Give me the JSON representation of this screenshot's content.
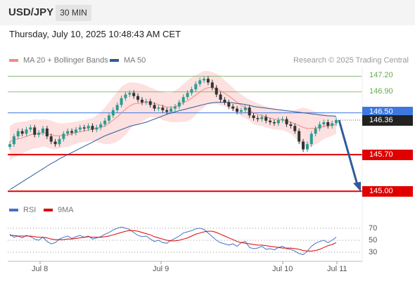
{
  "header": {
    "symbol": "USD/JPY",
    "timeframe_label": "30 MIN"
  },
  "datetime": "Thursday, July 10, 2025 10:48:43 AM CET",
  "legend": {
    "items": [
      {
        "label": "MA 20 + Bollinger Bands",
        "color": "#f28b82"
      },
      {
        "label": "MA 50",
        "color": "#2e5b9a"
      }
    ],
    "credit": "Research © 2025 Trading Central"
  },
  "price_levels": [
    {
      "label": "147.20",
      "value": 147.2,
      "kind": "target",
      "color": "#6aa84f"
    },
    {
      "label": "146.90",
      "value": 146.9,
      "kind": "target",
      "color": "#6aa84f"
    },
    {
      "label": "146.50",
      "value": 146.5,
      "kind": "pivot",
      "color": "#3d78e0"
    },
    {
      "label": "146.36",
      "value": 146.36,
      "kind": "last",
      "color": "#222222"
    },
    {
      "label": "145.70",
      "value": 145.7,
      "kind": "support",
      "color": "#e00000"
    },
    {
      "label": "145.00",
      "value": 145.0,
      "kind": "support",
      "color": "#e00000"
    }
  ],
  "rsi_panel": {
    "legend": [
      {
        "label": "RSI",
        "color": "#4472c4"
      },
      {
        "label": "9MA",
        "color": "#e00000"
      }
    ],
    "ticks": [
      "70",
      "50",
      "30"
    ]
  },
  "x_axis": {
    "labels": [
      "Jul 8",
      "Jul 9",
      "Jul 10",
      "Jul 11"
    ]
  },
  "chart_data": {
    "type": "candlestick",
    "price_axis": {
      "min": 144.95,
      "max": 147.3
    },
    "rsi_axis": {
      "min": 15,
      "max": 85
    },
    "candles_close": [
      145.9,
      146.05,
      146.15,
      146.1,
      146.18,
      146.22,
      146.08,
      146.12,
      146.2,
      146.05,
      145.95,
      145.9,
      146.0,
      146.1,
      146.15,
      146.12,
      146.18,
      146.22,
      146.2,
      146.25,
      146.18,
      146.22,
      146.28,
      146.35,
      146.45,
      146.55,
      146.65,
      146.78,
      146.85,
      146.88,
      146.82,
      146.75,
      146.7,
      146.72,
      146.65,
      146.58,
      146.6,
      146.55,
      146.52,
      146.58,
      146.62,
      146.7,
      146.8,
      146.88,
      146.95,
      147.05,
      147.12,
      147.15,
      147.08,
      146.98,
      146.85,
      146.75,
      146.7,
      146.62,
      146.58,
      146.52,
      146.55,
      146.6,
      146.45,
      146.4,
      146.38,
      146.42,
      146.35,
      146.32,
      146.3,
      146.36,
      146.38,
      146.28,
      146.25,
      146.15,
      145.95,
      145.8,
      145.9,
      146.1,
      146.2,
      146.28,
      146.32,
      146.25,
      146.3,
      146.36
    ],
    "ma20": [
      145.95,
      145.98,
      146.0,
      146.02,
      146.05,
      146.08,
      146.1,
      146.1,
      146.12,
      146.1,
      146.08,
      146.06,
      146.06,
      146.07,
      146.08,
      146.1,
      146.12,
      146.14,
      146.15,
      146.17,
      146.18,
      146.2,
      146.22,
      146.25,
      146.3,
      146.36,
      146.42,
      146.5,
      146.57,
      146.63,
      146.67,
      146.68,
      146.69,
      146.7,
      146.7,
      146.68,
      146.66,
      146.63,
      146.61,
      146.6,
      146.62,
      146.65,
      146.69,
      146.73,
      146.78,
      146.84,
      146.9,
      146.95,
      146.98,
      146.98,
      146.96,
      146.92,
      146.87,
      146.82,
      146.76,
      146.7,
      146.64,
      146.6,
      146.55,
      146.5,
      146.47,
      146.45,
      146.42,
      146.4,
      146.38,
      146.37,
      146.36,
      146.34,
      146.32,
      146.29,
      146.26,
      146.22,
      146.2,
      146.2,
      146.21,
      146.22,
      146.24,
      146.25,
      146.26,
      146.28
    ],
    "ma50": [
      145.03,
      145.08,
      145.13,
      145.18,
      145.23,
      145.28,
      145.33,
      145.38,
      145.43,
      145.48,
      145.53,
      145.57,
      145.62,
      145.66,
      145.7,
      145.74,
      145.78,
      145.82,
      145.86,
      145.9,
      145.94,
      145.98,
      146.02,
      146.06,
      146.09,
      146.12,
      146.15,
      146.18,
      146.21,
      146.24,
      146.26,
      146.28,
      146.3,
      146.32,
      146.35,
      146.38,
      146.41,
      146.44,
      146.47,
      146.5,
      146.52,
      146.54,
      146.56,
      146.58,
      146.6,
      146.62,
      146.64,
      146.66,
      146.68,
      146.69,
      146.7,
      146.7,
      146.7,
      146.7,
      146.69,
      146.68,
      146.67,
      146.66,
      146.64,
      146.62,
      146.61,
      146.6,
      146.59,
      146.58,
      146.57,
      146.56,
      146.55,
      146.54,
      146.53,
      146.52,
      146.51,
      146.5,
      146.49,
      146.48,
      146.47,
      146.46,
      146.45,
      146.44,
      146.44,
      146.43
    ],
    "bb_upper": [
      146.25,
      146.3,
      146.32,
      146.33,
      146.34,
      146.36,
      146.38,
      146.37,
      146.38,
      146.37,
      146.35,
      146.32,
      146.3,
      146.3,
      146.31,
      146.32,
      146.33,
      146.35,
      146.36,
      146.38,
      146.4,
      146.45,
      146.52,
      146.6,
      146.7,
      146.8,
      146.9,
      147.0,
      147.05,
      147.08,
      147.08,
      147.07,
      147.05,
      147.02,
      146.98,
      146.95,
      146.92,
      146.9,
      146.88,
      146.88,
      146.92,
      146.98,
      147.05,
      147.12,
      147.18,
      147.22,
      147.26,
      147.3,
      147.3,
      147.28,
      147.25,
      147.2,
      147.12,
      147.05,
      146.98,
      146.9,
      146.85,
      146.8,
      146.75,
      146.72,
      146.68,
      146.65,
      146.62,
      146.6,
      146.58,
      146.56,
      146.55,
      146.54,
      146.54,
      146.55,
      146.58,
      146.6,
      146.58,
      146.55,
      146.52,
      146.5,
      146.48,
      146.47,
      146.46,
      146.46
    ],
    "bb_lower": [
      145.6,
      145.65,
      145.68,
      145.72,
      145.76,
      145.8,
      145.82,
      145.83,
      145.86,
      145.84,
      145.81,
      145.8,
      145.82,
      145.84,
      145.85,
      145.88,
      145.91,
      145.93,
      145.94,
      145.96,
      145.96,
      145.95,
      145.92,
      145.9,
      145.9,
      145.92,
      145.95,
      146.0,
      146.08,
      146.18,
      146.26,
      146.29,
      146.33,
      146.38,
      146.42,
      146.41,
      146.4,
      146.36,
      146.34,
      146.32,
      146.32,
      146.32,
      146.33,
      146.34,
      146.38,
      146.46,
      146.54,
      146.6,
      146.66,
      146.68,
      146.67,
      146.64,
      146.62,
      146.59,
      146.54,
      146.5,
      146.43,
      146.4,
      146.35,
      146.28,
      146.26,
      146.25,
      146.22,
      146.2,
      146.18,
      146.18,
      146.17,
      146.14,
      146.1,
      146.03,
      145.94,
      145.84,
      145.82,
      145.85,
      145.9,
      145.94,
      146.0,
      146.03,
      146.06,
      146.1
    ],
    "rsi": [
      60,
      55,
      57,
      54,
      58,
      56,
      52,
      50,
      55,
      48,
      44,
      46,
      52,
      55,
      57,
      53,
      56,
      58,
      55,
      57,
      52,
      54,
      56,
      60,
      63,
      67,
      70,
      72,
      70,
      68,
      63,
      58,
      56,
      57,
      52,
      48,
      50,
      46,
      45,
      50,
      53,
      57,
      62,
      64,
      66,
      69,
      70,
      68,
      62,
      56,
      50,
      46,
      44,
      42,
      44,
      40,
      46,
      48,
      38,
      36,
      37,
      40,
      35,
      36,
      34,
      38,
      40,
      36,
      35,
      32,
      28,
      26,
      32,
      40,
      45,
      48,
      50,
      46,
      50,
      55
    ],
    "rsi_ma": [
      58,
      58,
      57,
      57,
      57,
      57,
      56,
      55,
      55,
      54,
      52,
      51,
      51,
      51,
      52,
      52,
      53,
      54,
      55,
      56,
      55,
      55,
      55,
      56,
      57,
      59,
      61,
      63,
      65,
      66,
      66,
      65,
      63,
      61,
      59,
      56,
      54,
      52,
      50,
      49,
      49,
      50,
      52,
      54,
      57,
      60,
      62,
      64,
      65,
      65,
      63,
      60,
      57,
      54,
      51,
      48,
      46,
      45,
      44,
      43,
      42,
      42,
      41,
      40,
      39,
      38,
      37,
      37,
      37,
      36,
      35,
      33,
      32,
      32,
      33,
      35,
      38,
      41,
      43,
      46
    ]
  }
}
